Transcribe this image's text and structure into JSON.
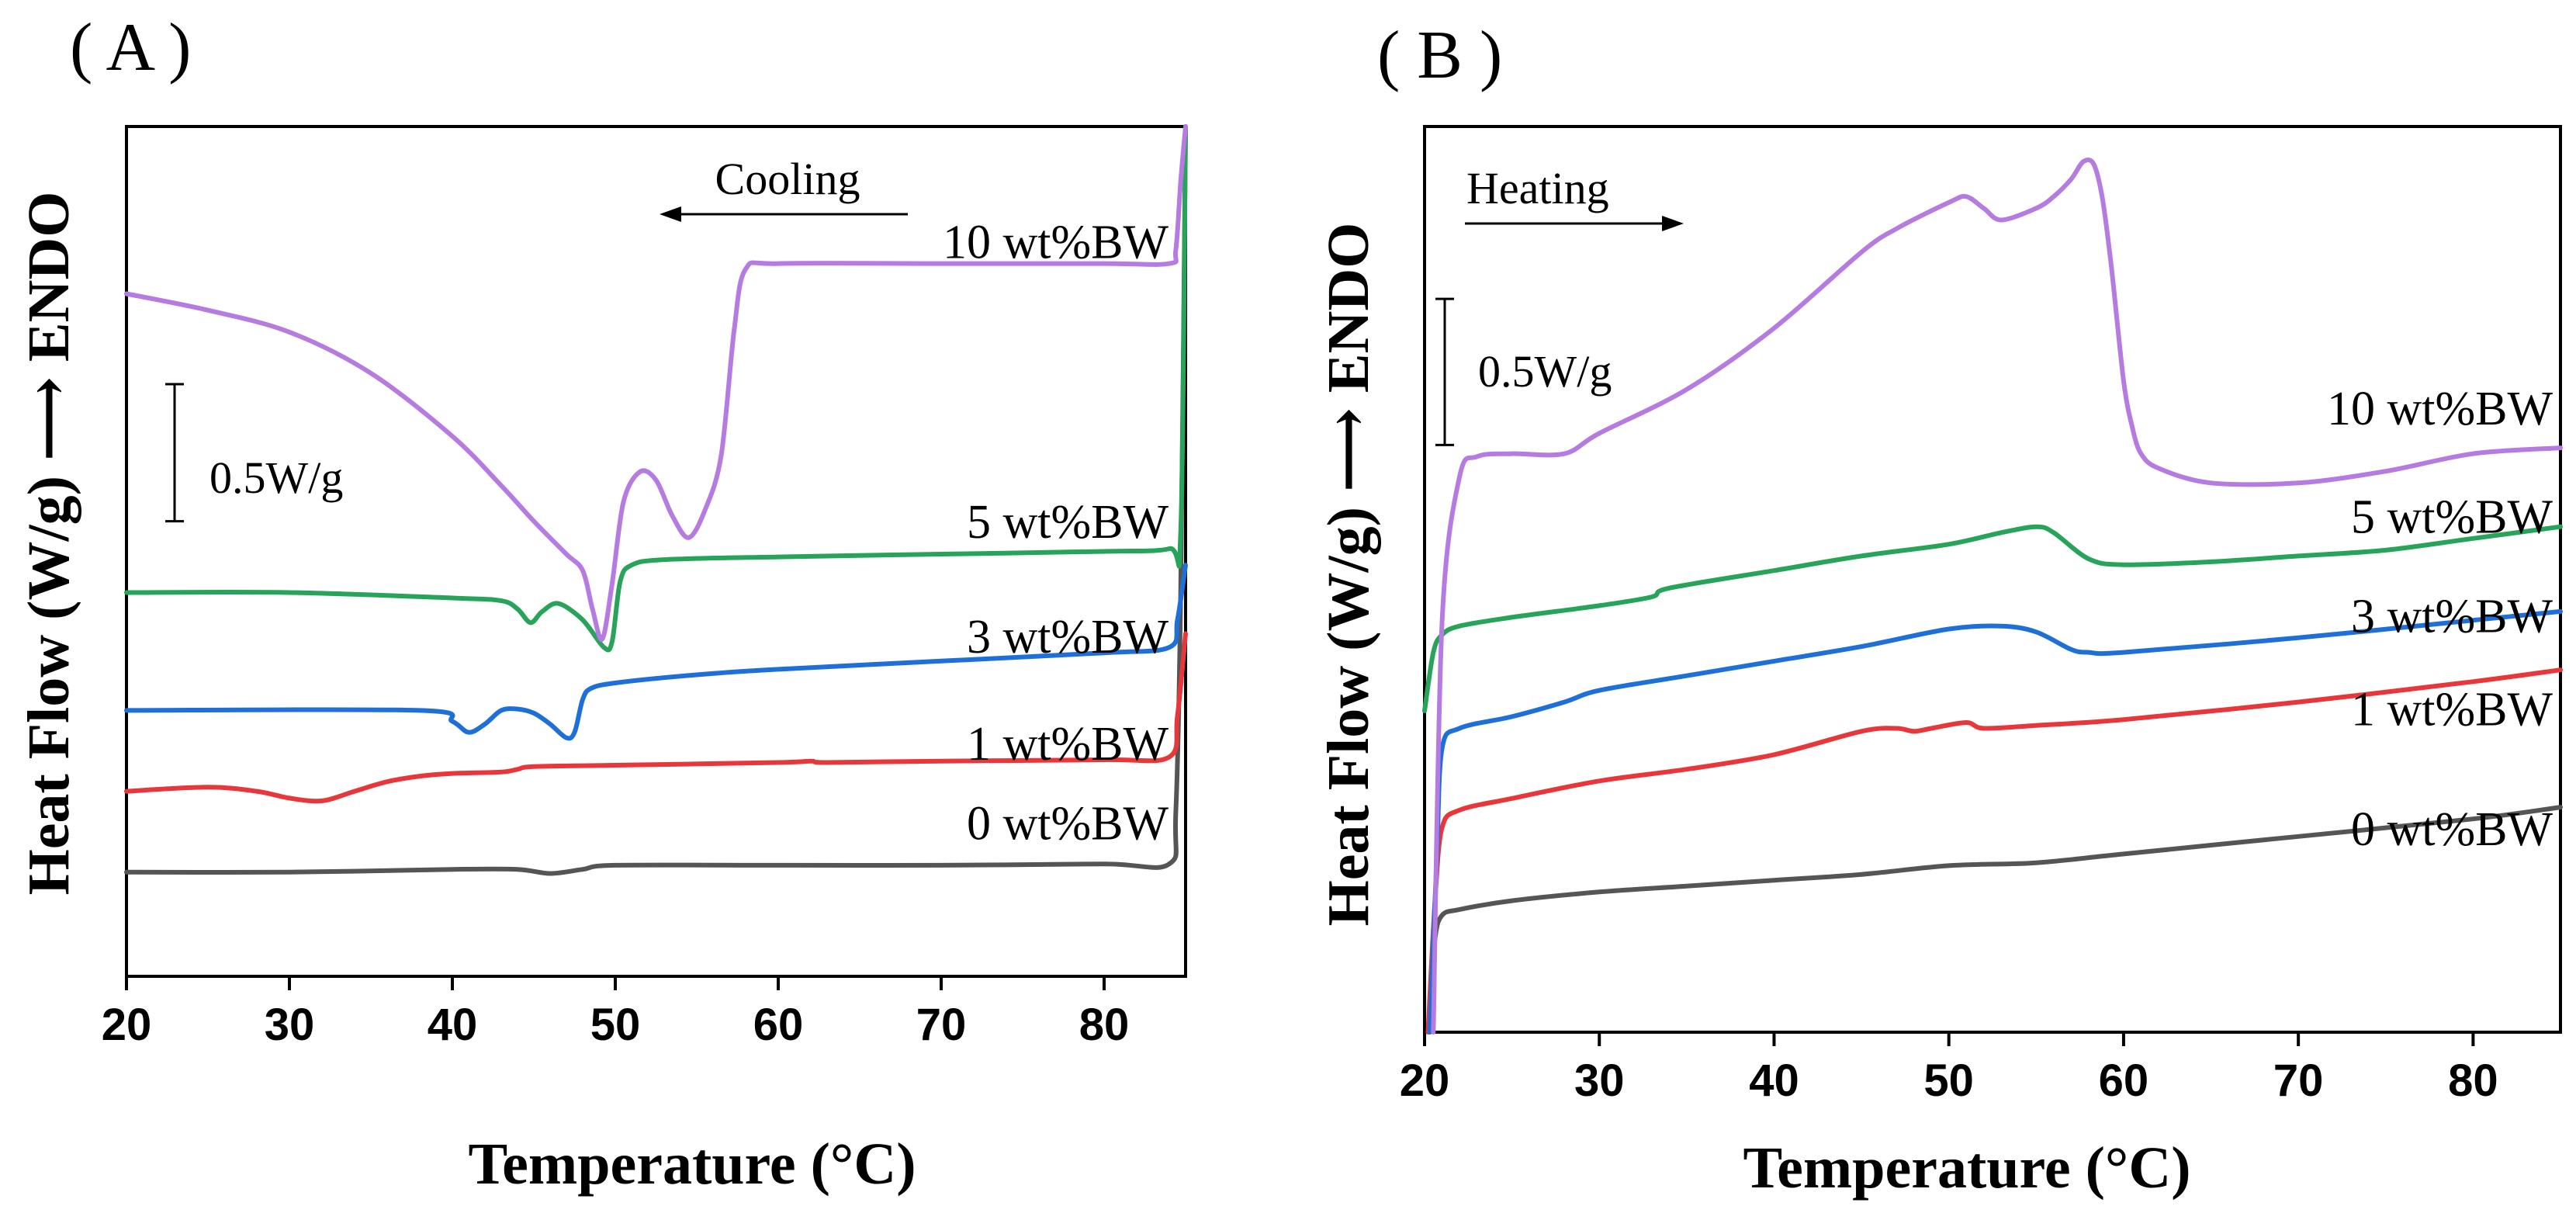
{
  "chart_data": [
    {
      "panel": "( A )",
      "type": "line",
      "xlabel": "Temperature (°C)",
      "ylabel": "Heat Flow (W/g)",
      "ylabel_arrow_text": "ENDO",
      "xlim": [
        20,
        85
      ],
      "ylim": [
        0,
        3.1
      ],
      "xticks": [
        20,
        30,
        40,
        50,
        60,
        70,
        80
      ],
      "direction_label": "Cooling",
      "direction_arrow": "left",
      "scale_bar_label": "0.5W/g",
      "scale_bar_span": [
        1.66,
        2.16
      ],
      "series": [
        {
          "name": "0 wt%BW",
          "color": "#555555",
          "label_anchor": [
            80,
            0.5
          ],
          "x": [
            20,
            30,
            40,
            44,
            46,
            48,
            50,
            60,
            70,
            80,
            84,
            84.4,
            84.7,
            85
          ],
          "y": [
            0.38,
            0.38,
            0.39,
            0.39,
            0.375,
            0.39,
            0.405,
            0.405,
            0.405,
            0.41,
            0.41,
            0.6,
            1.4,
            3.1
          ]
        },
        {
          "name": "1 wt%BW",
          "color": "#e8373a",
          "label_anchor": [
            80,
            0.79
          ],
          "x": [
            20,
            25,
            28,
            30,
            32,
            34,
            36,
            38,
            40,
            43,
            44,
            45,
            50,
            60,
            62,
            63,
            70,
            80,
            84,
            84.5,
            85
          ],
          "y": [
            0.675,
            0.69,
            0.675,
            0.65,
            0.64,
            0.675,
            0.71,
            0.73,
            0.74,
            0.745,
            0.755,
            0.765,
            0.77,
            0.78,
            0.785,
            0.78,
            0.785,
            0.79,
            0.8,
            0.95,
            1.25
          ]
        },
        {
          "name": "3 wt%BW",
          "color": "#1f6fd9",
          "label_anchor": [
            80,
            1.18
          ],
          "x": [
            20,
            38,
            40,
            41,
            42,
            43,
            44,
            45,
            46,
            47,
            47.5,
            48,
            48.5,
            50,
            55,
            60,
            70,
            80,
            84,
            84.5,
            85
          ],
          "y": [
            0.97,
            0.97,
            0.93,
            0.89,
            0.92,
            0.97,
            0.975,
            0.96,
            0.92,
            0.87,
            0.89,
            1.01,
            1.05,
            1.07,
            1.1,
            1.12,
            1.15,
            1.18,
            1.2,
            1.3,
            1.5
          ]
        },
        {
          "name": "5 wt%BW",
          "color": "#27a35a",
          "label_anchor": [
            80,
            1.6
          ],
          "x": [
            20,
            30,
            40,
            43,
            44,
            44.8,
            45.5,
            46.5,
            48,
            49.3,
            49.8,
            50.3,
            51,
            53,
            60,
            70,
            80,
            84,
            84.7,
            85
          ],
          "y": [
            1.4,
            1.4,
            1.38,
            1.37,
            1.34,
            1.29,
            1.33,
            1.36,
            1.3,
            1.2,
            1.22,
            1.44,
            1.5,
            1.52,
            1.53,
            1.54,
            1.55,
            1.56,
            1.62,
            3.1
          ]
        },
        {
          "name": "10 wt%BW",
          "color": "#b57be0",
          "label_anchor": [
            80,
            2.62
          ],
          "x": [
            20,
            25,
            30,
            35,
            40,
            43,
            45,
            47,
            48,
            48.6,
            49.2,
            49.8,
            50.5,
            51.5,
            52.5,
            53.5,
            54.5,
            55.5,
            56.5,
            57.3,
            58,
            60,
            70,
            80,
            84,
            84.4,
            84.7,
            85
          ],
          "y": [
            2.49,
            2.43,
            2.35,
            2.2,
            1.97,
            1.79,
            1.66,
            1.54,
            1.48,
            1.34,
            1.23,
            1.43,
            1.73,
            1.84,
            1.81,
            1.68,
            1.6,
            1.7,
            1.9,
            2.36,
            2.58,
            2.6,
            2.6,
            2.6,
            2.6,
            2.65,
            2.9,
            3.1
          ]
        }
      ]
    },
    {
      "panel": "( B )",
      "type": "line",
      "xlabel": "Temperature (°C)",
      "ylabel": "Heat Flow (W/g)",
      "ylabel_arrow_text": "ENDO",
      "xlim": [
        20,
        85
      ],
      "ylim": [
        0,
        3.1
      ],
      "xticks": [
        20,
        30,
        40,
        50,
        60,
        70,
        80
      ],
      "direction_label": "Heating",
      "direction_arrow": "right",
      "scale_bar_label": "0.5W/g",
      "scale_bar_span": [
        2.01,
        2.51
      ],
      "series": [
        {
          "name": "0 wt%BW",
          "color": "#555555",
          "label_anchor": [
            80,
            0.64
          ],
          "x": [
            20.3,
            20.6,
            21,
            22,
            25,
            30,
            35,
            40,
            45,
            50,
            55,
            60,
            70,
            80,
            85
          ],
          "y": [
            0.08,
            0.32,
            0.4,
            0.42,
            0.45,
            0.48,
            0.5,
            0.52,
            0.54,
            0.57,
            0.58,
            0.61,
            0.67,
            0.73,
            0.77
          ]
        },
        {
          "name": "1 wt%BW",
          "color": "#e8373a",
          "label_anchor": [
            80,
            1.05
          ],
          "x": [
            20.2,
            20.6,
            21,
            22,
            25,
            30,
            35,
            40,
            45,
            47,
            48,
            49,
            51,
            52,
            55,
            60,
            70,
            80,
            85
          ],
          "y": [
            0.0,
            0.45,
            0.7,
            0.76,
            0.8,
            0.86,
            0.9,
            0.95,
            1.03,
            1.04,
            1.03,
            1.04,
            1.06,
            1.04,
            1.05,
            1.07,
            1.13,
            1.2,
            1.24
          ]
        },
        {
          "name": "3 wt%BW",
          "color": "#1f6fd9",
          "label_anchor": [
            80,
            1.37
          ],
          "x": [
            20.3,
            20.7,
            21,
            22,
            25,
            28,
            30,
            35,
            40,
            45,
            50,
            53,
            55,
            57,
            58,
            60,
            70,
            80,
            85
          ],
          "y": [
            0.0,
            0.6,
            0.97,
            1.04,
            1.08,
            1.13,
            1.17,
            1.22,
            1.27,
            1.32,
            1.38,
            1.39,
            1.37,
            1.31,
            1.3,
            1.3,
            1.35,
            1.41,
            1.44
          ]
        },
        {
          "name": "5 wt%BW",
          "color": "#27a35a",
          "label_anchor": [
            80,
            1.71
          ],
          "x": [
            20,
            20.5,
            21,
            22,
            25,
            30,
            33,
            34,
            40,
            45,
            50,
            53,
            55,
            56,
            58,
            60,
            65,
            70,
            75,
            80,
            85
          ],
          "y": [
            1.1,
            1.3,
            1.36,
            1.39,
            1.42,
            1.46,
            1.49,
            1.52,
            1.58,
            1.63,
            1.67,
            1.71,
            1.73,
            1.71,
            1.62,
            1.6,
            1.61,
            1.63,
            1.65,
            1.69,
            1.73
          ]
        },
        {
          "name": "10 wt%BW",
          "color": "#b57be0",
          "label_anchor": [
            80,
            2.08
          ],
          "x": [
            20.5,
            21,
            22,
            23,
            25,
            28,
            30,
            35,
            40,
            45,
            47,
            50,
            51,
            52,
            53,
            55,
            56,
            57,
            57.7,
            58.3,
            58.8,
            59.3,
            60,
            60.5,
            61,
            62,
            65,
            70,
            75,
            80,
            85
          ],
          "y": [
            0.0,
            1.4,
            1.9,
            1.97,
            1.98,
            1.98,
            2.05,
            2.2,
            2.41,
            2.67,
            2.75,
            2.84,
            2.86,
            2.82,
            2.78,
            2.82,
            2.86,
            2.92,
            2.98,
            2.97,
            2.85,
            2.62,
            2.23,
            2.07,
            1.98,
            1.93,
            1.88,
            1.88,
            1.92,
            1.98,
            2.0
          ]
        }
      ]
    }
  ]
}
